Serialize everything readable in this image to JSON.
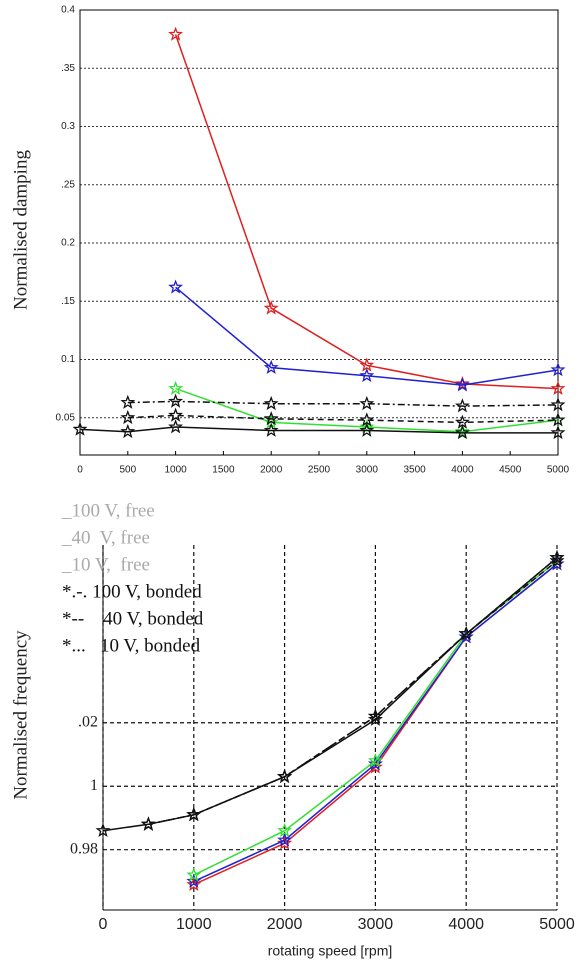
{
  "chart_data": [
    {
      "type": "line",
      "ylabel": "Normalised damping",
      "x": [
        0,
        500,
        1000,
        2000,
        3000,
        4000,
        5000
      ],
      "xlim": [
        0,
        5000
      ],
      "xticks": [
        0,
        500,
        1000,
        1500,
        2000,
        2500,
        3000,
        3500,
        4000,
        4500,
        5000
      ],
      "ylim": [
        0.018,
        0.4
      ],
      "yticks": [
        {
          "value": 0.05,
          "label": "0.05"
        },
        0.1,
        {
          "value": 0.15,
          "label": ".15"
        },
        0.2,
        {
          "value": 0.25,
          "label": ".25"
        },
        0.3,
        {
          "value": 0.35,
          "label": ".35"
        },
        0.4
      ],
      "grid": true,
      "series": [
        {
          "color": "#e02020",
          "dash": "solid",
          "values": [
            null,
            null,
            0.379,
            0.144,
            0.095,
            0.079,
            0.075
          ]
        },
        {
          "color": "#2020d0",
          "dash": "solid",
          "values": [
            null,
            null,
            0.162,
            0.093,
            0.086,
            0.078,
            0.091
          ]
        },
        {
          "color": "#30e030",
          "dash": "solid",
          "values": [
            null,
            null,
            0.075,
            0.046,
            0.042,
            0.038,
            0.048
          ]
        },
        {
          "color": "#111111",
          "dash": "dashdot",
          "values": [
            null,
            0.063,
            0.064,
            0.062,
            0.062,
            0.06,
            0.061
          ]
        },
        {
          "color": "#111111",
          "dash": "dashed",
          "values": [
            null,
            0.05,
            0.052,
            0.049,
            0.048,
            0.046,
            0.048
          ]
        },
        {
          "color": "#111111",
          "dash": "solid",
          "values": [
            0.04,
            0.038,
            0.042,
            0.039,
            0.039,
            0.037,
            0.037
          ]
        }
      ]
    },
    {
      "type": "line",
      "ylabel": "Normalised frequency",
      "xlabel": "rotating speed [rpm]",
      "x": [
        0,
        500,
        1000,
        2000,
        3000,
        4000,
        5000
      ],
      "xlim": [
        0,
        5000
      ],
      "xticks": [
        0,
        1000,
        2000,
        3000,
        4000,
        5000
      ],
      "ylim": [
        0.961,
        1.076
      ],
      "yticks": [
        0.98,
        1,
        {
          "value": 1.02,
          "label": ".02"
        }
      ],
      "grid": true,
      "series": [
        {
          "name": "_100 V, free",
          "color": "#e02020",
          "dash": "solid",
          "values": [
            null,
            null,
            0.969,
            0.982,
            1.006,
            1.047,
            1.07
          ]
        },
        {
          "name": "_40  V, free",
          "color": "#2020d0",
          "dash": "solid",
          "values": [
            null,
            null,
            0.97,
            0.983,
            1.007,
            1.047,
            1.07
          ]
        },
        {
          "name": "_10 V,  free",
          "color": "#30e030",
          "dash": "solid",
          "values": [
            null,
            null,
            0.972,
            0.986,
            1.008,
            1.048,
            1.071
          ]
        },
        {
          "name": "*.-. 100 V, bonded",
          "color": "#111111",
          "dash": "dashdot",
          "values": [
            null,
            0.988,
            0.991,
            1.003,
            1.022,
            1.048,
            1.072
          ]
        },
        {
          "name": "*--    40 V, bonded",
          "color": "#111111",
          "dash": "dashed",
          "values": [
            null,
            0.988,
            0.991,
            1.003,
            1.022,
            1.048,
            1.071
          ]
        },
        {
          "name": "*...   10 V, bonded",
          "color": "#111111",
          "dash": "solid",
          "values": [
            0.986,
            0.988,
            0.991,
            1.003,
            1.021,
            1.048,
            1.072
          ]
        }
      ]
    }
  ]
}
